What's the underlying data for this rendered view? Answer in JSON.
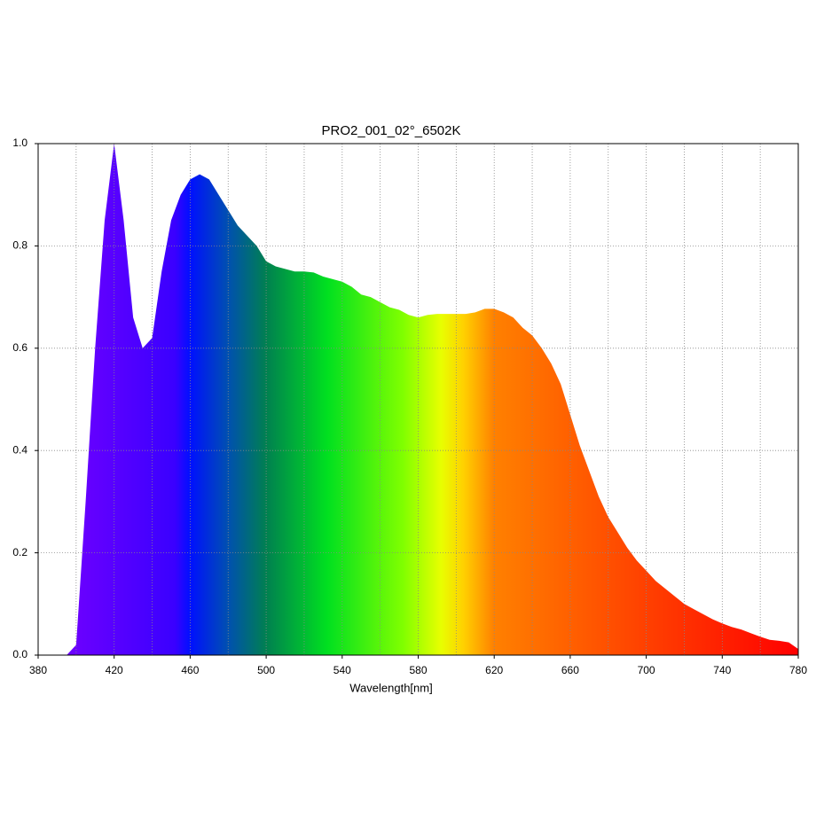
{
  "chart_data": {
    "type": "area",
    "title": "PRO2_001_02°_6502K",
    "xlabel": "Wavelength[nm]",
    "x": [
      380,
      385,
      390,
      395,
      400,
      405,
      410,
      415,
      420,
      425,
      430,
      435,
      440,
      445,
      450,
      455,
      460,
      465,
      470,
      475,
      480,
      485,
      490,
      495,
      500,
      505,
      510,
      515,
      520,
      525,
      530,
      535,
      540,
      545,
      550,
      555,
      560,
      565,
      570,
      575,
      580,
      585,
      590,
      595,
      600,
      605,
      610,
      615,
      620,
      625,
      630,
      635,
      640,
      645,
      650,
      655,
      660,
      665,
      670,
      675,
      680,
      685,
      690,
      695,
      700,
      705,
      710,
      715,
      720,
      725,
      730,
      735,
      740,
      745,
      750,
      755,
      760,
      765,
      770,
      775,
      780
    ],
    "values": [
      0,
      0,
      0,
      0,
      0.02,
      0.3,
      0.6,
      0.85,
      1.0,
      0.85,
      0.66,
      0.6,
      0.62,
      0.75,
      0.85,
      0.9,
      0.93,
      0.94,
      0.93,
      0.9,
      0.87,
      0.84,
      0.82,
      0.8,
      0.77,
      0.76,
      0.755,
      0.75,
      0.75,
      0.748,
      0.74,
      0.735,
      0.73,
      0.72,
      0.705,
      0.7,
      0.69,
      0.68,
      0.675,
      0.665,
      0.66,
      0.665,
      0.667,
      0.667,
      0.667,
      0.667,
      0.67,
      0.677,
      0.677,
      0.67,
      0.66,
      0.64,
      0.625,
      0.6,
      0.57,
      0.53,
      0.47,
      0.41,
      0.36,
      0.31,
      0.27,
      0.24,
      0.21,
      0.185,
      0.165,
      0.145,
      0.13,
      0.115,
      0.1,
      0.09,
      0.08,
      0.07,
      0.062,
      0.055,
      0.05,
      0.043,
      0.036,
      0.03,
      0.028,
      0.025,
      0.012
    ],
    "xlim": [
      380,
      780
    ],
    "xticks": [
      380,
      420,
      460,
      500,
      540,
      580,
      620,
      660,
      700,
      740,
      780
    ],
    "xgrid": [
      380,
      400,
      420,
      440,
      460,
      480,
      500,
      520,
      540,
      560,
      580,
      600,
      620,
      640,
      660,
      680,
      700,
      720,
      740,
      760,
      780
    ],
    "ylim": [
      0,
      1
    ],
    "yticks": [
      {
        "value": 0,
        "label": "0.0"
      },
      0.2,
      0.4,
      0.6,
      0.8,
      {
        "value": 1,
        "label": "1.0"
      }
    ],
    "grid": true
  }
}
